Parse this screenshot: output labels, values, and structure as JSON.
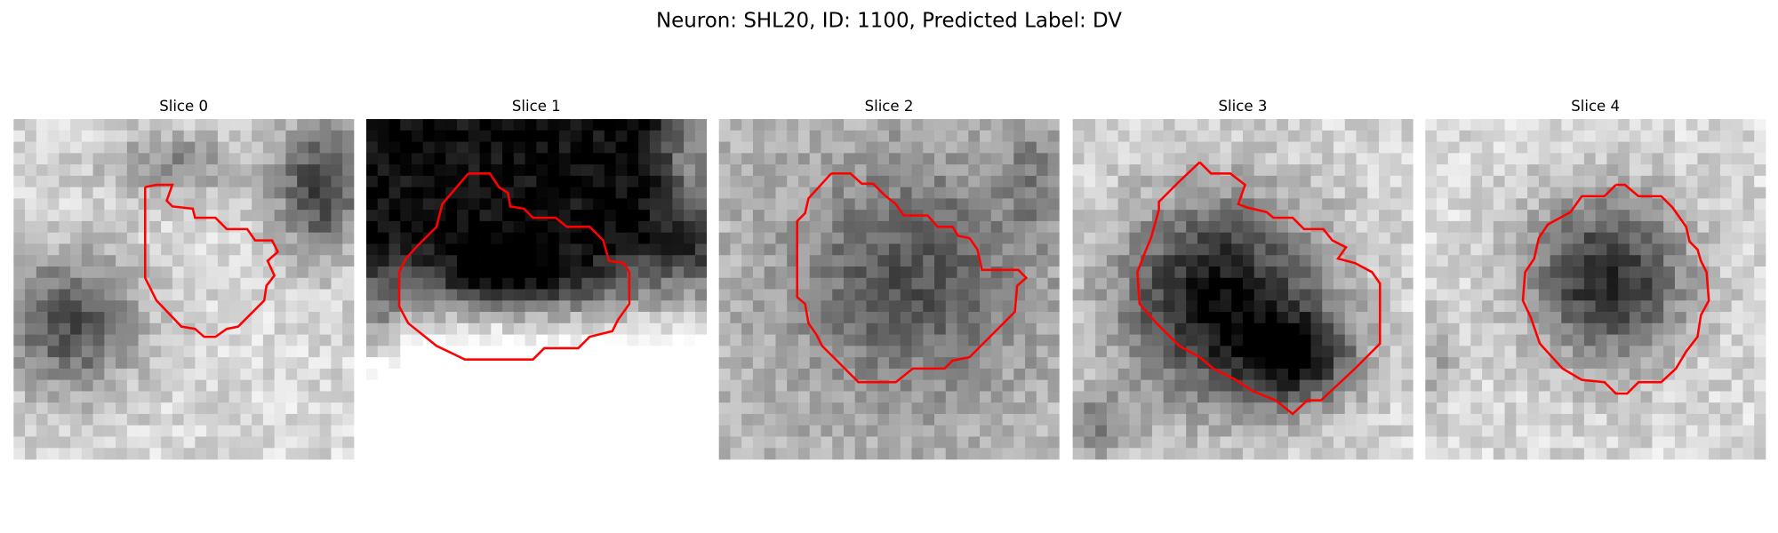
{
  "title": "Neuron: SHL20, ID: 1100, Predicted Label: DV",
  "panels": [
    {
      "title": "Slice 0"
    },
    {
      "title": "Slice 1"
    },
    {
      "title": "Slice 2"
    },
    {
      "title": "Slice 3"
    },
    {
      "title": "Slice 4"
    }
  ]
}
